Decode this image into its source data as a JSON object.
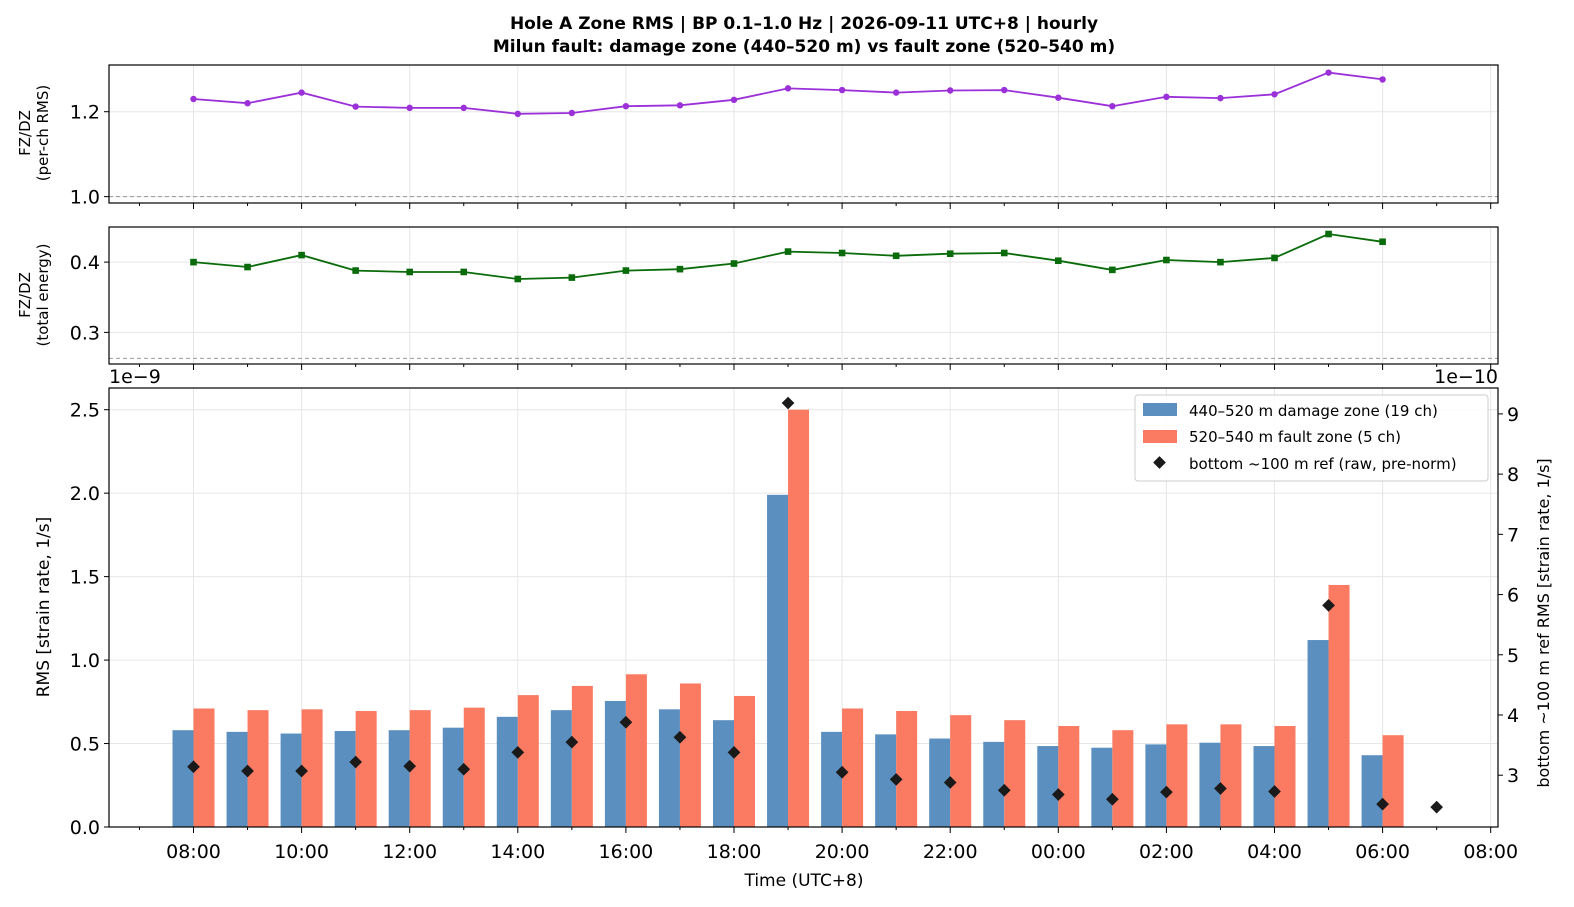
{
  "title": "Hole A Zone RMS  |  BP 0.1–1.0 Hz  |  2026-09-11 UTC+8  |  hourly",
  "subtitle": "Milun fault: damage zone (440–520 m) vs fault zone (520–540 m)",
  "colors": {
    "ratio_rms": "#9b30d9",
    "ratio_energy": "#0a6b0a",
    "damage_zone": "#5b8fc0",
    "fault_zone": "#fa7a62",
    "reference": "#1a1a1a",
    "grid": "#e6e6e6",
    "baseline": "#999999"
  },
  "chart_data": [
    {
      "type": "line",
      "ylabel": [
        "FZ/DZ",
        "(per-ch RMS)"
      ],
      "x": [
        "08:00",
        "09:00",
        "10:00",
        "11:00",
        "12:00",
        "13:00",
        "14:00",
        "15:00",
        "16:00",
        "17:00",
        "18:00",
        "19:00",
        "20:00",
        "21:00",
        "22:00",
        "23:00",
        "00:00",
        "01:00",
        "02:00",
        "03:00",
        "04:00",
        "05:00",
        "06:00"
      ],
      "values": [
        1.23,
        1.22,
        1.245,
        1.212,
        1.209,
        1.209,
        1.195,
        1.197,
        1.213,
        1.215,
        1.228,
        1.255,
        1.251,
        1.245,
        1.25,
        1.251,
        1.233,
        1.213,
        1.235,
        1.232,
        1.241,
        1.292,
        1.276
      ],
      "ylim": [
        0.985,
        1.31
      ],
      "yticks": [
        "1.0",
        "1.2"
      ],
      "reference_line": 1.0,
      "marker": "circle",
      "grid": true
    },
    {
      "type": "line",
      "ylabel": [
        "FZ/DZ",
        "(total energy)"
      ],
      "x": [
        "08:00",
        "09:00",
        "10:00",
        "11:00",
        "12:00",
        "13:00",
        "14:00",
        "15:00",
        "16:00",
        "17:00",
        "18:00",
        "19:00",
        "20:00",
        "21:00",
        "22:00",
        "23:00",
        "00:00",
        "01:00",
        "02:00",
        "03:00",
        "04:00",
        "05:00",
        "06:00"
      ],
      "values": [
        0.4,
        0.393,
        0.41,
        0.388,
        0.386,
        0.386,
        0.376,
        0.378,
        0.388,
        0.39,
        0.398,
        0.415,
        0.413,
        0.409,
        0.412,
        0.413,
        0.402,
        0.389,
        0.403,
        0.4,
        0.406,
        0.44,
        0.429
      ],
      "ylim": [
        0.255,
        0.45
      ],
      "yticks": [
        "0.3",
        "0.4"
      ],
      "reference_line": 0.263,
      "marker": "square",
      "grid": true
    },
    {
      "type": "bar",
      "ylabel": "RMS  [strain rate, 1/s]",
      "y2label": "bottom ~100 m ref RMS  [strain rate, 1/s]",
      "xlabel": "Time (UTC+8)",
      "left_offset": "1e−9",
      "right_offset": "1e−10",
      "categories": [
        "08:00",
        "09:00",
        "10:00",
        "11:00",
        "12:00",
        "13:00",
        "14:00",
        "15:00",
        "16:00",
        "17:00",
        "18:00",
        "19:00",
        "20:00",
        "21:00",
        "22:00",
        "23:00",
        "00:00",
        "01:00",
        "02:00",
        "03:00",
        "04:00",
        "05:00",
        "06:00"
      ],
      "series": [
        {
          "name": "440–520 m  damage zone (19 ch)",
          "axis": "left",
          "values": [
            0.58,
            0.57,
            0.56,
            0.575,
            0.58,
            0.595,
            0.66,
            0.7,
            0.755,
            0.705,
            0.64,
            1.99,
            0.57,
            0.555,
            0.53,
            0.51,
            0.485,
            0.475,
            0.495,
            0.505,
            0.485,
            1.12,
            0.43
          ]
        },
        {
          "name": "520–540 m  fault zone (5 ch)",
          "axis": "left",
          "values": [
            0.71,
            0.7,
            0.705,
            0.695,
            0.7,
            0.715,
            0.79,
            0.845,
            0.915,
            0.86,
            0.785,
            2.5,
            0.71,
            0.695,
            0.67,
            0.64,
            0.605,
            0.58,
            0.615,
            0.615,
            0.605,
            1.45,
            0.55
          ]
        }
      ],
      "reference": {
        "name": "bottom ~100 m ref (raw, pre-norm)",
        "axis": "right",
        "x": [
          "08:00",
          "09:00",
          "10:00",
          "11:00",
          "12:00",
          "13:00",
          "14:00",
          "15:00",
          "16:00",
          "17:00",
          "18:00",
          "19:00",
          "20:00",
          "21:00",
          "22:00",
          "23:00",
          "00:00",
          "01:00",
          "02:00",
          "03:00",
          "04:00",
          "05:00",
          "06:00",
          "07:00"
        ],
        "values": [
          3.14,
          3.07,
          3.07,
          3.22,
          3.15,
          3.1,
          3.38,
          3.55,
          3.88,
          3.63,
          3.38,
          9.18,
          3.05,
          2.93,
          2.88,
          2.75,
          2.68,
          2.6,
          2.72,
          2.78,
          2.73,
          5.82,
          2.52,
          2.47
        ]
      },
      "ylim": [
        0,
        2.63
      ],
      "y2lim": [
        2.14,
        9.43
      ],
      "yticks": [
        "0.0",
        "0.5",
        "1.0",
        "1.5",
        "2.0",
        "2.5"
      ],
      "y2ticks": [
        "3",
        "4",
        "5",
        "6",
        "7",
        "8",
        "9"
      ],
      "xticks": [
        "08:00",
        "10:00",
        "12:00",
        "14:00",
        "16:00",
        "18:00",
        "20:00",
        "22:00",
        "00:00",
        "02:00",
        "04:00",
        "06:00",
        "08:00"
      ],
      "legend_position": "top-right",
      "grid": true
    }
  ]
}
